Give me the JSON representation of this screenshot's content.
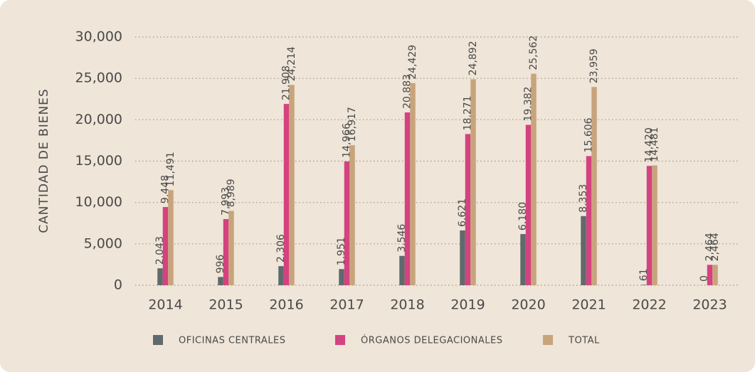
{
  "chart_data": {
    "type": "bar",
    "y_label": "CANTIDAD DE BIENES",
    "categories": [
      "2014",
      "2015",
      "2016",
      "2017",
      "2018",
      "2019",
      "2020",
      "2021",
      "2022",
      "2023"
    ],
    "series": [
      {
        "name": "OFICINAS CENTRALES",
        "color": "#5f6a6c",
        "values": [
          2043,
          996,
          2306,
          1951,
          3546,
          6621,
          6180,
          8353,
          61,
          0
        ],
        "value_labels": [
          "2,043",
          "996",
          "2,306",
          "1,951",
          "3,546",
          "6,621",
          "6,180",
          "8,353",
          "61",
          "0"
        ]
      },
      {
        "name": "ÓRGANOS DELEGACIONALES",
        "color": "#d4427f",
        "values": [
          9448,
          7993,
          21908,
          14966,
          20883,
          18271,
          19382,
          15606,
          14420,
          2464
        ],
        "value_labels": [
          "9,448",
          "7,993",
          "21,908",
          "14,966",
          "20,883",
          "18,271",
          "19,382",
          "15,606",
          "14,420",
          "2,464"
        ]
      },
      {
        "name": "TOTAL",
        "color": "#c8a47d",
        "values": [
          11491,
          8989,
          24214,
          16917,
          24429,
          24892,
          25562,
          23959,
          14481,
          2464
        ],
        "value_labels": [
          "11,491",
          "8,989",
          "24,214",
          "16,917",
          "24,429",
          "24,892",
          "25,562",
          "23,959",
          "14,481",
          "2,464"
        ]
      }
    ],
    "ylim": [
      0,
      30000
    ],
    "yticks": [
      0,
      {
        "value": 5000,
        "label": "5,000"
      },
      {
        "value": 10000,
        "label": "10,000"
      },
      {
        "value": 15000,
        "label": "15,000"
      },
      {
        "value": 20000,
        "label": "20,000"
      },
      {
        "value": 25000,
        "label": "25,000"
      },
      {
        "value": 30000,
        "label": "30,000"
      }
    ],
    "grid": true,
    "legend": "bottom"
  }
}
